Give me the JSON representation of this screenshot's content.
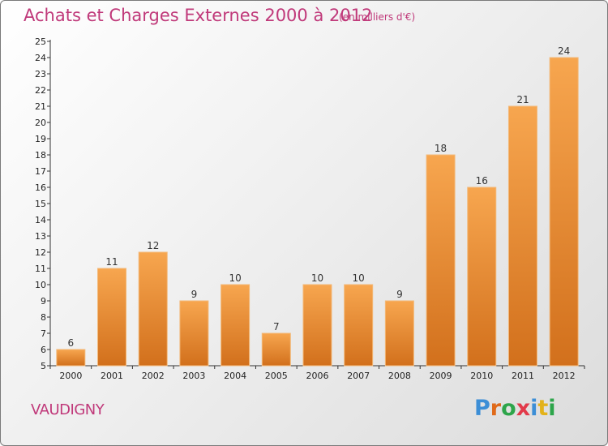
{
  "header": {
    "title": "Achats et Charges Externes 2000 à 2012",
    "subtitle": "(en milliers d'€)"
  },
  "footer": {
    "place": "VAUDIGNY",
    "logo": "Proxiti"
  },
  "colors": {
    "bar_light": "#f7a64f",
    "bar_dark": "#d2701c",
    "title": "#c0397a",
    "logo": [
      "#3c8ed6",
      "#e06a1a",
      "#2da54a",
      "#e23a4a",
      "#3c8ed6",
      "#e3b21a",
      "#2da54a"
    ]
  },
  "chart_data": {
    "type": "bar",
    "title": "Achats et Charges Externes 2000 à 2012",
    "subtitle": "(en milliers d'€)",
    "categories": [
      "2000",
      "2001",
      "2002",
      "2003",
      "2004",
      "2005",
      "2006",
      "2007",
      "2008",
      "2009",
      "2010",
      "2011",
      "2012"
    ],
    "values": [
      6,
      11,
      12,
      9,
      10,
      7,
      10,
      10,
      9,
      18,
      16,
      21,
      24
    ],
    "xlabel": "",
    "ylabel": "",
    "ylim": [
      5,
      25
    ],
    "yticks": [
      5,
      6,
      7,
      8,
      9,
      10,
      11,
      12,
      13,
      14,
      15,
      16,
      17,
      18,
      19,
      20,
      21,
      22,
      23,
      24,
      25
    ],
    "grid": false,
    "data_labels": true
  }
}
